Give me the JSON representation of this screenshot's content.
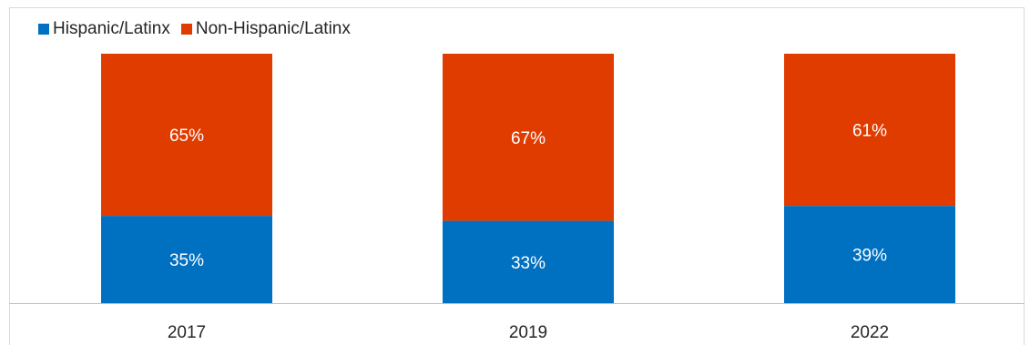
{
  "chart_data": {
    "type": "bar",
    "stacked": true,
    "percent": true,
    "categories": [
      "2017",
      "2019",
      "2022"
    ],
    "series": [
      {
        "name": "Hispanic/Latinx",
        "values": [
          35,
          33,
          39
        ],
        "color": "#0070c0",
        "labels": [
          "35%",
          "33%",
          "39%"
        ]
      },
      {
        "name": "Non-Hispanic/Latinx",
        "values": [
          65,
          67,
          61
        ],
        "color": "#e03c00",
        "labels": [
          "65%",
          "67%",
          "61%"
        ]
      }
    ],
    "ylim": [
      0,
      100
    ],
    "legend_position": "top-left",
    "grid": false
  }
}
